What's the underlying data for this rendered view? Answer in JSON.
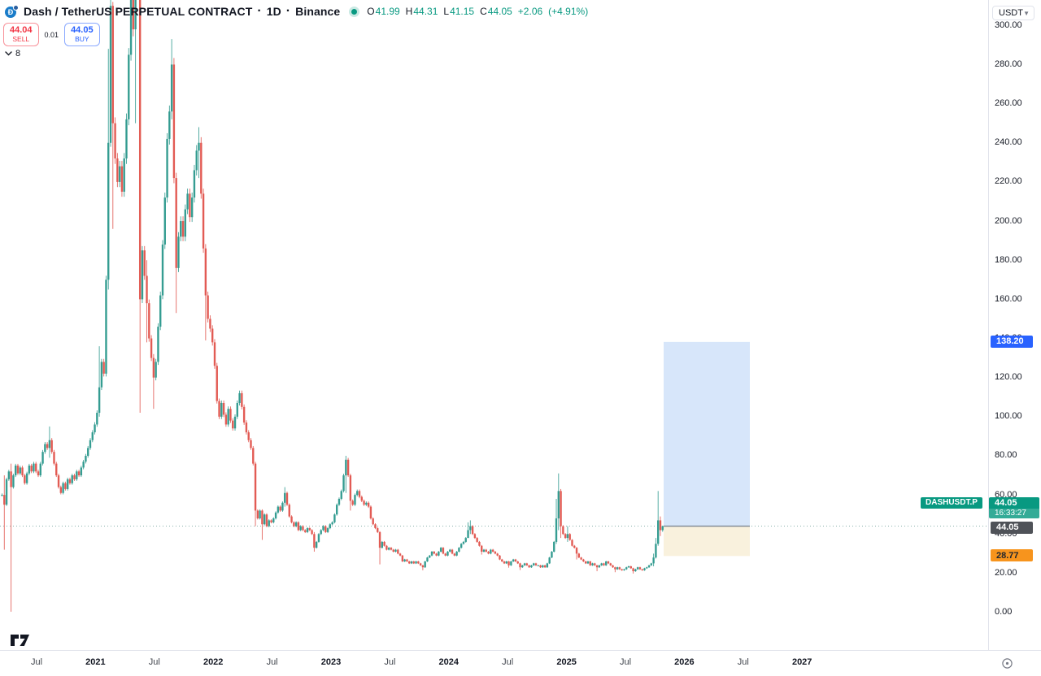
{
  "header": {
    "symbol_title": "Dash / TetherUS PERPETUAL CONTRACT",
    "sep": "·",
    "interval": "1D",
    "exchange": "Binance",
    "ohlc": {
      "o_key": "O",
      "o": "41.99",
      "h_key": "H",
      "h": "44.31",
      "l_key": "L",
      "l": "41.15",
      "c_key": "C",
      "c": "44.05",
      "change": "+2.06",
      "change_pct": "(+4.91%)"
    },
    "sell": {
      "price": "44.04",
      "label": "SELL"
    },
    "spread": "0.01",
    "buy": {
      "price": "44.05",
      "label": "BUY"
    },
    "object_count": "8"
  },
  "price_scale": {
    "currency": "USDT",
    "ticks": [
      "300.00",
      "280.00",
      "260.00",
      "240.00",
      "220.00",
      "200.00",
      "180.00",
      "160.00",
      "140.00",
      "120.00",
      "100.00",
      "80.00",
      "60.00",
      "40.00",
      "20.00",
      "0.00"
    ],
    "labels": {
      "target": {
        "text": "138.20",
        "value": 138.2,
        "color": "#2962ff"
      },
      "symbol_tag": "DASHUSDT.P",
      "last": {
        "price": "44.05",
        "value": 44.05,
        "countdown": "16:33:27",
        "color": "#089981"
      },
      "entry": {
        "text": "44.05",
        "value": 44.05,
        "color": "#4f5258"
      },
      "stop": {
        "text": "28.77",
        "value": 28.77,
        "color": "#f7941d"
      }
    }
  },
  "time_scale": {
    "labels": [
      "Jul",
      "2021",
      "Jul",
      "2022",
      "Jul",
      "2023",
      "Jul",
      "2024",
      "Jul",
      "2025",
      "Jul",
      "2026",
      "Jul",
      "2027"
    ]
  },
  "chart_data": {
    "type": "candlestick",
    "symbol": "DASHUSDT.P",
    "exchange": "Binance",
    "interval": "1D",
    "title": "Dash / TetherUS PERPETUAL CONTRACT",
    "ylim": [
      0,
      300
    ],
    "x_range": [
      "2020-03",
      "2028-01"
    ],
    "grid": false,
    "up_color": "#2f9a8e",
    "down_color": "#e1564f",
    "note": "weekly-resolution approximation of the daily series; open = previous close",
    "first_open": 60,
    "closes": [
      60,
      55,
      68,
      72,
      64,
      70,
      75,
      71,
      74,
      70,
      66,
      71,
      75,
      72,
      76,
      72,
      70,
      76,
      82,
      86,
      84,
      88,
      82,
      76,
      70,
      64,
      61,
      66,
      63,
      68,
      66,
      70,
      68,
      72,
      70,
      74,
      77,
      80,
      84,
      88,
      92,
      96,
      102,
      115,
      128,
      122,
      170,
      240,
      310,
      250,
      232,
      220,
      228,
      215,
      232,
      252,
      285,
      320,
      298,
      345,
      430,
      160,
      185,
      172,
      158,
      140,
      130,
      120,
      128,
      146,
      162,
      188,
      212,
      242,
      256,
      280,
      222,
      176,
      192,
      200,
      192,
      206,
      214,
      202,
      212,
      226,
      236,
      240,
      214,
      186,
      162,
      150,
      145,
      138,
      126,
      108,
      100,
      107,
      101,
      96,
      104,
      98,
      94,
      100,
      107,
      112,
      105,
      97,
      92,
      88,
      84,
      76,
      52,
      48,
      52,
      45,
      50,
      44,
      47,
      46,
      48,
      51,
      54,
      52,
      56,
      61,
      55,
      49,
      46,
      44,
      46,
      42,
      44,
      42,
      41,
      43,
      42,
      40,
      33,
      36,
      40,
      42,
      44,
      41,
      43,
      45,
      46,
      50,
      55,
      58,
      62,
      70,
      78,
      70,
      57,
      55,
      60,
      62,
      59,
      57,
      55,
      56,
      54,
      48,
      45,
      43,
      41,
      33,
      36,
      34,
      32,
      33,
      32,
      31,
      32,
      30,
      29,
      26,
      27,
      26,
      25,
      26,
      25,
      26,
      25,
      24,
      23,
      26,
      28,
      29,
      31,
      30,
      29,
      31,
      33,
      30,
      29,
      31,
      32,
      30,
      29,
      31,
      33,
      35,
      36,
      38,
      42,
      44,
      40,
      38,
      36,
      34,
      31,
      32,
      31,
      30,
      32,
      31,
      30,
      29,
      27,
      26,
      25,
      26,
      24,
      26,
      27,
      26,
      25,
      23,
      24,
      25,
      24,
      23,
      24,
      25,
      24,
      24,
      23,
      24,
      23,
      25,
      28,
      31,
      36,
      48,
      62,
      44,
      40,
      38,
      40,
      37,
      34,
      33,
      30,
      28,
      27,
      26,
      25,
      26,
      24,
      25,
      24,
      23,
      24,
      25,
      24,
      26,
      25,
      24,
      23,
      22,
      23,
      22,
      21.5,
      22,
      23,
      23.5,
      22.5,
      21,
      22,
      23,
      22,
      21.5,
      22.5,
      23,
      24,
      25,
      28,
      35,
      47,
      41.99,
      44.05
    ],
    "wick_overrides": {
      "1": [
        70,
        32
      ],
      "4": [
        76,
        0.3
      ],
      "21": [
        95,
        79
      ],
      "43": [
        136,
        100
      ],
      "47": [
        288,
        165
      ],
      "48": [
        345,
        238
      ],
      "49": [
        312,
        196
      ],
      "57": [
        352,
        282
      ],
      "59": [
        400,
        250
      ],
      "60": [
        493,
        338
      ],
      "61": [
        436,
        102
      ],
      "64": [
        180,
        138
      ],
      "67": [
        132,
        104
      ],
      "75": [
        293,
        252
      ],
      "77": [
        null,
        153
      ],
      "87": [
        248,
        222
      ],
      "90": [
        null,
        139
      ],
      "112": [
        null,
        44
      ],
      "115": [
        null,
        37
      ],
      "125": [
        64,
        54
      ],
      "138": [
        41,
        31
      ],
      "152": [
        80,
        61
      ],
      "154": [
        null,
        52
      ],
      "167": [
        null,
        24.5
      ],
      "186": [
        null,
        21.5
      ],
      "206": [
        46,
        38
      ],
      "207": [
        47,
        40
      ],
      "212": [
        null,
        29.5
      ],
      "224": [
        null,
        22.8
      ],
      "229": [
        null,
        21.6
      ],
      "245": [
        58,
        35
      ],
      "246": [
        71,
        42
      ],
      "247": [
        63,
        38
      ],
      "250": [
        44,
        36
      ],
      "254": [
        null,
        27
      ],
      "263": [
        null,
        21
      ],
      "271": [
        null,
        20.5
      ],
      "279": [
        null,
        19.8
      ],
      "288": [
        30,
        23.5
      ],
      "289": [
        38,
        27.5
      ],
      "290": [
        62,
        34
      ],
      "291": [
        49,
        39
      ],
      "292": [
        44.31,
        41.15
      ]
    },
    "last_candle_ohlc": {
      "open": 41.99,
      "high": 44.31,
      "low": 41.15,
      "close": 44.05
    },
    "price_line": {
      "value": 44.05
    },
    "position_tool": {
      "type": "long-position",
      "entry": 44.05,
      "target": 138.2,
      "stop": 28.77,
      "profit_fill": "#d3e3f9",
      "loss_fill": "#f9f0db"
    }
  }
}
